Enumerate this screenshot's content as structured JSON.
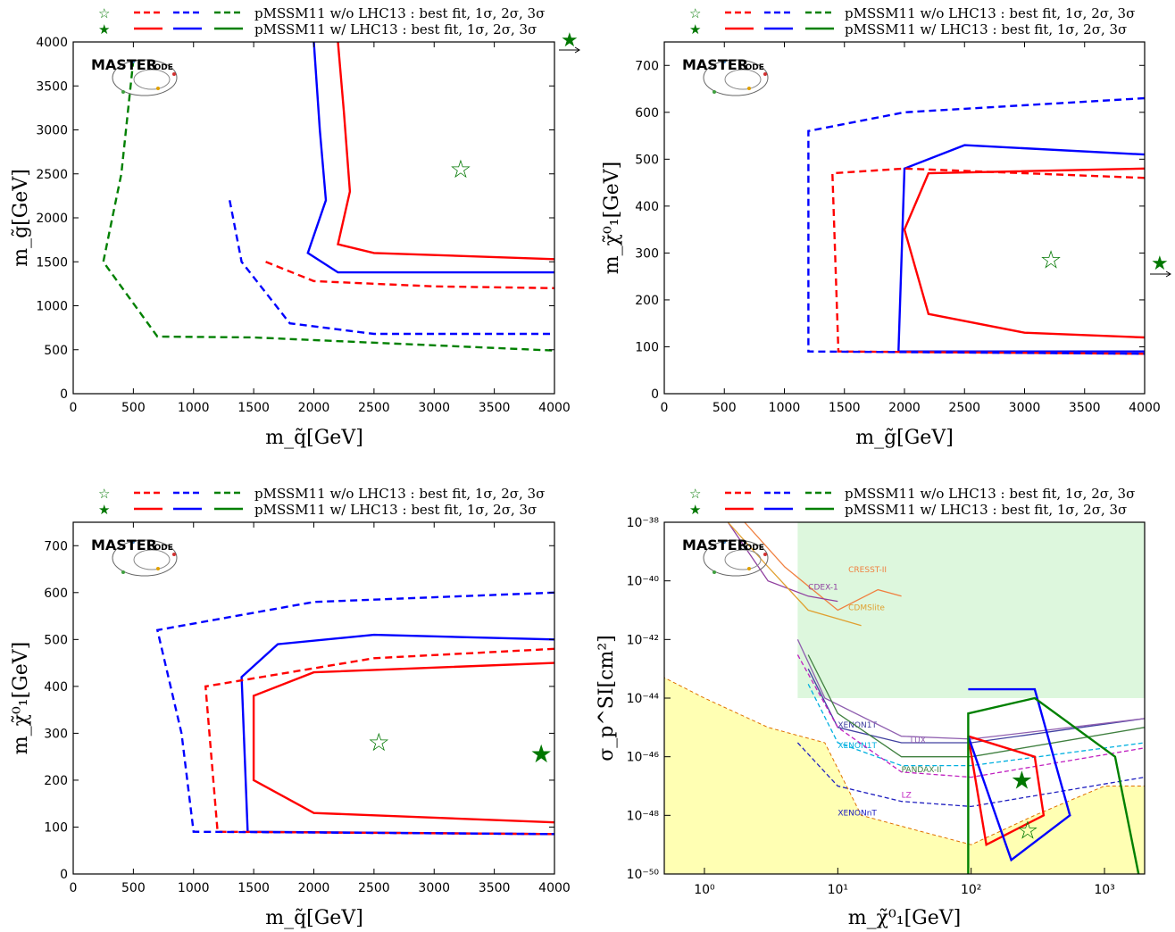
{
  "legend": {
    "row1": "pMSSM11  w/o LHC13 :  best fit, 1σ, 2σ, 3σ",
    "row2": "pMSSM11  w/  LHC13 :  best fit, 1σ, 2σ, 3σ"
  },
  "logo": {
    "main": "MASTER",
    "sub": "CODE"
  },
  "colors": {
    "onesigma": "#ff0000",
    "twosigma": "#0000ff",
    "threesigma": "#008000",
    "excluded_bg": "#ddf7dd",
    "neutrino_floor": "#ffffb3"
  },
  "chart_data": [
    {
      "type": "contour",
      "xlabel": "m_q̃[GeV]",
      "ylabel": "m_g̃[GeV]",
      "xlim": [
        0,
        4000
      ],
      "ylim": [
        0,
        4000
      ],
      "xticks": [
        "0",
        "500",
        "1000",
        "1500",
        "2000",
        "2500",
        "3000",
        "3500",
        "4000"
      ],
      "yticks": [
        "0",
        "500",
        "1000",
        "1500",
        "2000",
        "2500",
        "3000",
        "3500",
        "4000"
      ],
      "best_fit_without_LHC13": [
        3220,
        2550
      ],
      "best_fit_with_LHC13": "beyond axis range (arrow at upper right)",
      "contours": [
        {
          "name": "1σ w/ LHC13",
          "style": "solid",
          "color": "red",
          "points": [
            [
              2200,
              4000
            ],
            [
              2250,
              3200
            ],
            [
              2300,
              2300
            ],
            [
              2200,
              1700
            ],
            [
              2500,
              1600
            ],
            [
              4000,
              1530
            ]
          ]
        },
        {
          "name": "2σ w/ LHC13",
          "style": "solid",
          "color": "blue",
          "points": [
            [
              2000,
              4000
            ],
            [
              2050,
              3000
            ],
            [
              2100,
              2200
            ],
            [
              1950,
              1600
            ],
            [
              2200,
              1380
            ],
            [
              4000,
              1380
            ]
          ]
        },
        {
          "name": "1σ w/o LHC13",
          "style": "dashed",
          "color": "red",
          "points": [
            [
              1600,
              1500
            ],
            [
              2000,
              1280
            ],
            [
              3000,
              1220
            ],
            [
              4000,
              1200
            ]
          ]
        },
        {
          "name": "2σ w/o LHC13",
          "style": "dashed",
          "color": "blue",
          "points": [
            [
              1300,
              2200
            ],
            [
              1400,
              1500
            ],
            [
              1800,
              800
            ],
            [
              2500,
              680
            ],
            [
              4000,
              680
            ]
          ]
        },
        {
          "name": "3σ w/o LHC13",
          "style": "dashed",
          "color": "green",
          "points": [
            [
              500,
              3800
            ],
            [
              400,
              2500
            ],
            [
              250,
              1500
            ],
            [
              700,
              650
            ],
            [
              1500,
              640
            ],
            [
              4000,
              490
            ]
          ]
        }
      ]
    },
    {
      "type": "contour",
      "xlabel": "m_g̃[GeV]",
      "ylabel": "m_χ̃⁰₁[GeV]",
      "xlim": [
        0,
        4000
      ],
      "ylim": [
        0,
        750
      ],
      "xticks": [
        "0",
        "500",
        "1000",
        "1500",
        "2000",
        "2500",
        "3000",
        "3500",
        "4000"
      ],
      "yticks": [
        "0",
        "100",
        "200",
        "300",
        "400",
        "500",
        "600",
        "700"
      ],
      "best_fit_without_LHC13": [
        3220,
        285
      ],
      "best_fit_with_LHC13": "beyond axis range (arrow at right)",
      "contours": [
        {
          "name": "1σ w/ LHC13",
          "style": "solid",
          "color": "red",
          "points": [
            [
              4000,
              480
            ],
            [
              2200,
              470
            ],
            [
              2000,
              350
            ],
            [
              2200,
              170
            ],
            [
              3000,
              130
            ],
            [
              4000,
              120
            ]
          ]
        },
        {
          "name": "2σ w/ LHC13",
          "style": "solid",
          "color": "blue",
          "points": [
            [
              4000,
              510
            ],
            [
              2500,
              530
            ],
            [
              2000,
              480
            ],
            [
              1950,
              90
            ],
            [
              4000,
              90
            ]
          ]
        },
        {
          "name": "1σ w/o LHC13",
          "style": "dashed",
          "color": "red",
          "points": [
            [
              4000,
              460
            ],
            [
              2000,
              480
            ],
            [
              1400,
              470
            ],
            [
              1450,
              90
            ],
            [
              4000,
              85
            ]
          ]
        },
        {
          "name": "2σ w/o LHC13",
          "style": "dashed",
          "color": "blue",
          "points": [
            [
              4000,
              630
            ],
            [
              2000,
              600
            ],
            [
              1200,
              560
            ],
            [
              1200,
              90
            ],
            [
              4000,
              85
            ]
          ]
        }
      ]
    },
    {
      "type": "contour",
      "xlabel": "m_q̃[GeV]",
      "ylabel": "m_χ̃⁰₁[GeV]",
      "xlim": [
        0,
        4000
      ],
      "ylim": [
        0,
        750
      ],
      "xticks": [
        "0",
        "500",
        "1000",
        "1500",
        "2000",
        "2500",
        "3000",
        "3500",
        "4000"
      ],
      "yticks": [
        "0",
        "100",
        "200",
        "300",
        "400",
        "500",
        "600",
        "700"
      ],
      "best_fit_without_LHC13": [
        2540,
        280
      ],
      "best_fit_with_LHC13": [
        3890,
        255
      ],
      "contours": [
        {
          "name": "1σ w/ LHC13",
          "style": "solid",
          "color": "red",
          "points": [
            [
              4000,
              450
            ],
            [
              2000,
              430
            ],
            [
              1500,
              380
            ],
            [
              1500,
              200
            ],
            [
              2000,
              130
            ],
            [
              4000,
              110
            ]
          ]
        },
        {
          "name": "2σ w/ LHC13",
          "style": "solid",
          "color": "blue",
          "points": [
            [
              4000,
              500
            ],
            [
              2500,
              510
            ],
            [
              1700,
              490
            ],
            [
              1400,
              420
            ],
            [
              1450,
              90
            ],
            [
              4000,
              85
            ]
          ]
        },
        {
          "name": "1σ w/o LHC13",
          "style": "dashed",
          "color": "red",
          "points": [
            [
              4000,
              480
            ],
            [
              2500,
              460
            ],
            [
              1100,
              400
            ],
            [
              1200,
              90
            ],
            [
              4000,
              85
            ]
          ]
        },
        {
          "name": "2σ w/o LHC13",
          "style": "dashed",
          "color": "blue",
          "points": [
            [
              4000,
              600
            ],
            [
              2000,
              580
            ],
            [
              700,
              520
            ],
            [
              900,
              300
            ],
            [
              1000,
              90
            ],
            [
              4000,
              85
            ]
          ]
        }
      ]
    },
    {
      "type": "contour",
      "xlabel": "m_χ̃⁰₁[GeV]",
      "ylabel": "σ_p^SI[cm²]",
      "xscale": "log",
      "yscale": "log",
      "xlim": [
        0.5,
        2000
      ],
      "ylim": [
        1e-50,
        1e-38
      ],
      "xticks": [
        "10⁰",
        "10¹",
        "10²",
        "10³"
      ],
      "yticks": [
        "10⁻⁵⁰",
        "10⁻⁴⁸",
        "10⁻⁴⁶",
        "10⁻⁴⁴",
        "10⁻⁴²",
        "10⁻⁴⁰",
        "10⁻³⁸"
      ],
      "best_fit_without_LHC13": [
        265,
        3e-49
      ],
      "best_fit_with_LHC13": [
        240,
        1.5e-47
      ],
      "experiment_labels": [
        "CRESST-II",
        "CDEX-1",
        "CDMSlite",
        "XENON1T",
        "XENON1T",
        "LUX",
        "PANDAX-II",
        "LZ",
        "XENONnT"
      ],
      "contours": [
        {
          "name": "1σ w/ LHC13",
          "style": "solid",
          "color": "red",
          "points": [
            [
              95,
              5e-46
            ],
            [
              300,
              1e-46
            ],
            [
              350,
              1e-48
            ],
            [
              130,
              1e-49
            ],
            [
              95,
              5e-46
            ]
          ]
        },
        {
          "name": "2σ w/ LHC13",
          "style": "solid",
          "color": "blue",
          "points": [
            [
              95,
              2e-44
            ],
            [
              300,
              2e-44
            ],
            [
              550,
              1e-48
            ],
            [
              200,
              3e-50
            ],
            [
              95,
              5e-46
            ]
          ]
        },
        {
          "name": "3σ w/ LHC13",
          "style": "solid",
          "color": "green",
          "points": [
            [
              95,
              1e-50
            ],
            [
              95,
              3e-45
            ],
            [
              300,
              1e-44
            ],
            [
              1200,
              1e-46
            ],
            [
              1800,
              1e-50
            ]
          ]
        }
      ]
    }
  ]
}
